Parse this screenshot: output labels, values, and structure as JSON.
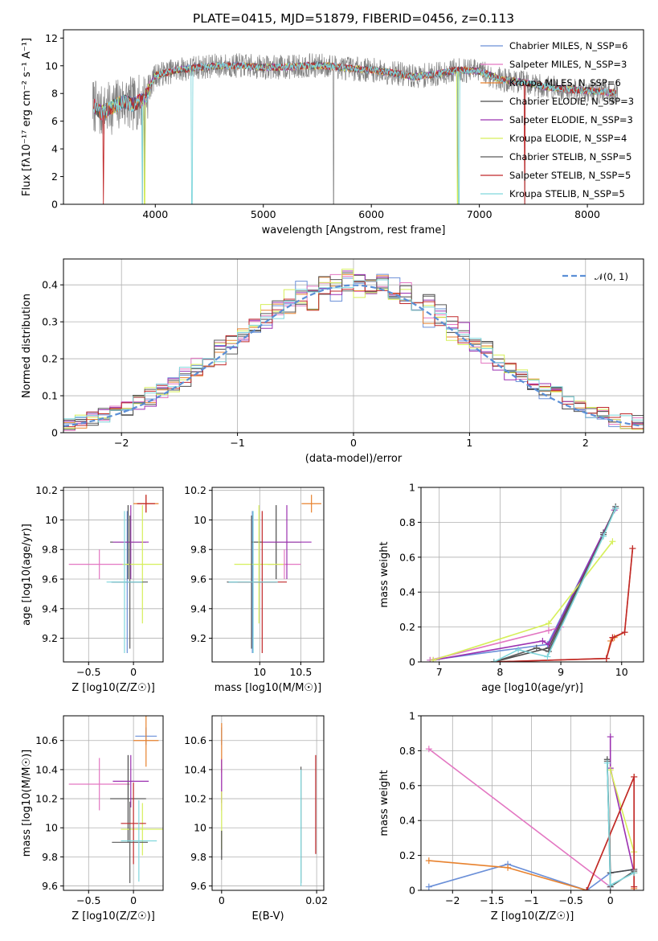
{
  "figure_title": "PLATE=0415, MJD=51879, FIBERID=0456, z=0.113",
  "colors": {
    "Chabrier MILES": "#6a8fd8",
    "Salpeter MILES": "#e377c2",
    "Kroupa MILES": "#e8822e",
    "Chabrier ELODIE": "#4a4a4a",
    "Salpeter ELODIE": "#9b30b0",
    "Kroupa ELODIE": "#d6ef5a",
    "Chabrier STELIB": "#5a5a5a",
    "Salpeter STELIB": "#c0282a",
    "Kroupa STELIB": "#7fd6dc",
    "data": "#808080",
    "normal": "#5b8fd6"
  },
  "chart_data": [
    {
      "id": "spectrum",
      "type": "line",
      "title": "PLATE=0415, MJD=51879, FIBERID=0456, z=0.113",
      "xlabel": "wavelength [Angstrom, rest frame]",
      "ylabel": "Flux [fλ10⁻¹⁷ erg cm⁻² s⁻¹ A⁻¹]",
      "xlim": [
        3150,
        8520
      ],
      "ylim": [
        0,
        12.6
      ],
      "xticks": [
        4000,
        5000,
        6000,
        7000,
        8000
      ],
      "yticks": [
        0,
        2,
        4,
        6,
        8,
        10,
        12
      ],
      "grid": false,
      "legend_position": "right",
      "legend": [
        "Chabrier MILES, N_SSP=6",
        "Salpeter MILES, N_SSP=3",
        "Kroupa MILES, N_SSP=6",
        "Chabrier ELODIE, N_SSP=3",
        "Salpeter ELODIE, N_SSP=3",
        "Kroupa ELODIE, N_SSP=4",
        "Chabrier STELIB, N_SSP=5",
        "Salpeter STELIB, N_SSP=5",
        "Kroupa STELIB, N_SSP=5"
      ],
      "continuum_x": [
        3420,
        3500,
        3600,
        3700,
        3800,
        3900,
        4000,
        4200,
        4400,
        4600,
        4800,
        5000,
        5200,
        5400,
        5600,
        5800,
        6000,
        6200,
        6400,
        6600,
        6800,
        7000,
        7200,
        7400,
        7600,
        7800,
        8000,
        8200,
        8280
      ],
      "continuum_y": [
        7.2,
        6.6,
        7.0,
        7.4,
        7.2,
        7.6,
        9.3,
        9.7,
        9.9,
        10.0,
        10.0,
        9.9,
        9.9,
        10.0,
        10.0,
        9.8,
        9.7,
        9.5,
        9.2,
        9.4,
        9.7,
        9.6,
        9.0,
        8.8,
        8.5,
        8.3,
        8.2,
        8.1,
        8.0
      ]
    },
    {
      "id": "residuals",
      "type": "line",
      "xlabel": "(data-model)/error",
      "ylabel": "Normed distribution",
      "xlim": [
        -2.5,
        2.5
      ],
      "ylim": [
        0,
        0.47
      ],
      "xticks": [
        -2,
        -1,
        0,
        1,
        2
      ],
      "yticks": [
        0.0,
        0.1,
        0.2,
        0.3,
        0.4
      ],
      "grid": true,
      "legend_position": "top-right",
      "legend": [
        "𝒩(0, 1)"
      ],
      "series": [
        {
          "name": "𝒩(0, 1)",
          "mean": 0,
          "sigma": 1
        }
      ]
    },
    {
      "id": "age-vs-z",
      "type": "scatter",
      "xlabel": "Z [log10(Z/Z☉)]",
      "ylabel": "age [log10(age/yr)]",
      "xlim": [
        -0.78,
        0.33
      ],
      "ylim": [
        9.04,
        10.22
      ],
      "xticks": [
        -0.5,
        0.0
      ],
      "yticks": [
        9.2,
        9.4,
        9.6,
        9.8,
        10.0,
        10.2
      ],
      "grid": true,
      "points": [
        {
          "model": "Salpeter MILES",
          "x": -0.38,
          "y": 9.7,
          "xerr": 0.34,
          "yerr": 0.1
        },
        {
          "model": "Chabrier MILES",
          "x": -0.07,
          "y": 9.58,
          "xerr": 0.18,
          "yerr": 0.48
        },
        {
          "model": "Kroupa MILES",
          "x": 0.14,
          "y": 10.11,
          "xerr": 0.14,
          "yerr": 0.06
        },
        {
          "model": "Chabrier ELODIE",
          "x": -0.06,
          "y": 9.85,
          "xerr": 0.2,
          "yerr": 0.25
        },
        {
          "model": "Salpeter ELODIE",
          "x": -0.03,
          "y": 9.85,
          "xerr": 0.2,
          "yerr": 0.25
        },
        {
          "model": "Kroupa ELODIE",
          "x": 0.1,
          "y": 9.7,
          "xerr": 0.22,
          "yerr": 0.4
        },
        {
          "model": "Chabrier STELIB",
          "x": -0.04,
          "y": 9.58,
          "xerr": 0.2,
          "yerr": 0.45
        },
        {
          "model": "Salpeter STELIB",
          "x": 0.14,
          "y": 10.11,
          "xerr": 0.1,
          "yerr": 0.06
        },
        {
          "model": "Kroupa STELIB",
          "x": -0.1,
          "y": 9.58,
          "xerr": 0.2,
          "yerr": 0.48
        }
      ]
    },
    {
      "id": "age-vs-mass",
      "type": "scatter",
      "xlabel": "mass [log10(M/M☉)]",
      "ylabel": "",
      "xlim": [
        9.42,
        10.78
      ],
      "ylim": [
        9.04,
        10.22
      ],
      "xticks": [
        10.0,
        10.5
      ],
      "yticks": [
        9.2,
        9.4,
        9.6,
        9.8,
        10.0,
        10.2
      ],
      "grid": true,
      "points": [
        {
          "model": "Salpeter MILES",
          "x": 10.3,
          "y": 9.7,
          "xerr": 0.2,
          "yerr": 0.1
        },
        {
          "model": "Chabrier MILES",
          "x": 9.91,
          "y": 9.58,
          "xerr": 0.3,
          "yerr": 0.48
        },
        {
          "model": "Kroupa MILES",
          "x": 10.63,
          "y": 10.11,
          "xerr": 0.12,
          "yerr": 0.06
        },
        {
          "model": "Chabrier ELODIE",
          "x": 10.2,
          "y": 9.85,
          "xerr": 0.3,
          "yerr": 0.25
        },
        {
          "model": "Salpeter ELODIE",
          "x": 10.33,
          "y": 9.85,
          "xerr": 0.3,
          "yerr": 0.25
        },
        {
          "model": "Kroupa ELODIE",
          "x": 9.99,
          "y": 9.7,
          "xerr": 0.3,
          "yerr": 0.4
        },
        {
          "model": "Chabrier STELIB",
          "x": 9.9,
          "y": 9.58,
          "xerr": 0.3,
          "yerr": 0.45
        },
        {
          "model": "Salpeter STELIB",
          "x": 10.03,
          "y": 9.58,
          "xerr": 0.3,
          "yerr": 0.48
        },
        {
          "model": "Kroupa STELIB",
          "x": 9.92,
          "y": 9.58,
          "xerr": 0.3,
          "yerr": 0.48
        }
      ]
    },
    {
      "id": "weight-vs-age",
      "type": "line",
      "xlabel": "age [log10(age/yr)]",
      "ylabel": "mass weight",
      "xlim": [
        6.7,
        10.36
      ],
      "ylim": [
        0,
        1.0
      ],
      "xticks": [
        7,
        8,
        9,
        10
      ],
      "yticks": [
        0.0,
        0.2,
        0.4,
        0.6,
        0.8,
        1.0
      ],
      "grid": true,
      "series": [
        {
          "model": "Chabrier MILES",
          "x": [
            6.85,
            8.78,
            9.7,
            9.9
          ],
          "y": [
            0.01,
            0.1,
            0.74,
            0.88
          ]
        },
        {
          "model": "Salpeter MILES",
          "x": [
            6.85,
            8.8,
            9.0
          ],
          "y": [
            0.01,
            0.18,
            0.2
          ]
        },
        {
          "model": "Kroupa MILES",
          "x": [
            7.9,
            9.75,
            9.82,
            9.88,
            10.05,
            10.18
          ],
          "y": [
            0.0,
            0.02,
            0.12,
            0.14,
            0.17,
            0.65
          ]
        },
        {
          "model": "Chabrier ELODIE",
          "x": [
            7.9,
            8.8,
            9.7,
            9.9
          ],
          "y": [
            0.0,
            0.08,
            0.74,
            0.88
          ]
        },
        {
          "model": "Salpeter ELODIE",
          "x": [
            6.9,
            8.7,
            8.8,
            9.88
          ],
          "y": [
            0.01,
            0.12,
            0.1,
            0.87
          ]
        },
        {
          "model": "Kroupa ELODIE",
          "x": [
            6.9,
            8.8,
            9.85
          ],
          "y": [
            0.01,
            0.22,
            0.69
          ]
        },
        {
          "model": "Chabrier STELIB",
          "x": [
            7.9,
            8.6,
            8.8,
            9.7,
            9.9
          ],
          "y": [
            0.0,
            0.08,
            0.06,
            0.73,
            0.89
          ]
        },
        {
          "model": "Salpeter STELIB",
          "x": [
            7.9,
            9.75,
            9.85,
            10.05,
            10.18
          ],
          "y": [
            0.0,
            0.02,
            0.14,
            0.17,
            0.65
          ]
        },
        {
          "model": "Kroupa STELIB",
          "x": [
            7.9,
            8.3,
            8.78,
            9.7,
            9.9
          ],
          "y": [
            0.0,
            0.07,
            0.03,
            0.72,
            0.88
          ]
        }
      ]
    },
    {
      "id": "mass-vs-z",
      "type": "scatter",
      "xlabel": "Z [log10(Z/Z☉)]",
      "ylabel": "mass [log10(M/M☉)]",
      "xlim": [
        -0.78,
        0.33
      ],
      "ylim": [
        9.57,
        10.77
      ],
      "xticks": [
        -0.5,
        0.0
      ],
      "yticks": [
        9.6,
        9.8,
        10.0,
        10.2,
        10.4,
        10.6
      ],
      "grid": true,
      "points": [
        {
          "model": "Salpeter MILES",
          "x": -0.38,
          "y": 10.3,
          "xerr": 0.34,
          "yerr": 0.18
        },
        {
          "model": "Chabrier MILES",
          "x": 0.14,
          "y": 10.63,
          "xerr": 0.12,
          "yerr": 0.06
        },
        {
          "model": "Kroupa MILES",
          "x": 0.14,
          "y": 10.6,
          "xerr": 0.14,
          "yerr": 0.18
        },
        {
          "model": "Chabrier ELODIE",
          "x": -0.06,
          "y": 10.2,
          "xerr": 0.2,
          "yerr": 0.3
        },
        {
          "model": "Salpeter ELODIE",
          "x": -0.03,
          "y": 10.32,
          "xerr": 0.2,
          "yerr": 0.18
        },
        {
          "model": "Kroupa ELODIE",
          "x": 0.1,
          "y": 9.99,
          "xerr": 0.24,
          "yerr": 0.18
        },
        {
          "model": "Chabrier STELIB",
          "x": -0.04,
          "y": 9.9,
          "xerr": 0.2,
          "yerr": 0.28
        },
        {
          "model": "Salpeter STELIB",
          "x": 0.0,
          "y": 10.03,
          "xerr": 0.14,
          "yerr": 0.28
        },
        {
          "model": "Kroupa STELIB",
          "x": 0.06,
          "y": 9.91,
          "xerr": 0.2,
          "yerr": 0.28
        }
      ]
    },
    {
      "id": "mass-vs-ebv",
      "type": "scatter",
      "xlabel": "E(B-V)",
      "ylabel": "",
      "xlim": [
        -0.002,
        0.0215
      ],
      "ylim": [
        9.57,
        10.77
      ],
      "xticks": [
        0.0,
        0.02
      ],
      "yticks": [
        9.6,
        9.8,
        10.0,
        10.2,
        10.4,
        10.6
      ],
      "grid": true,
      "points": [
        {
          "model": "Chabrier MILES",
          "x": 0.0,
          "y": 10.63,
          "yerr": 0.06
        },
        {
          "model": "Salpeter MILES",
          "x": 0.0,
          "y": 10.3,
          "yerr": 0.18
        },
        {
          "model": "Kroupa MILES",
          "x": 0.0,
          "y": 10.55,
          "yerr": 0.17
        },
        {
          "model": "Salpeter ELODIE",
          "x": 0.0,
          "y": 10.32,
          "yerr": 0.15
        },
        {
          "model": "Kroupa ELODIE",
          "x": 0.0,
          "y": 10.05,
          "yerr": 0.2
        },
        {
          "model": "Chabrier ELODIE",
          "x": 0.0,
          "y": 9.88,
          "yerr": 0.1
        },
        {
          "model": "Chabrier STELIB",
          "x": 0.0167,
          "y": 10.02,
          "yerr": 0.4
        },
        {
          "model": "Kroupa STELIB",
          "x": 0.0167,
          "y": 10.0,
          "yerr": 0.4
        },
        {
          "model": "Salpeter STELIB",
          "x": 0.0198,
          "y": 10.16,
          "yerr": 0.34
        }
      ]
    },
    {
      "id": "weight-vs-z",
      "type": "line",
      "xlabel": "Z [log10(Z/Z☉)]",
      "ylabel": "mass weight",
      "xlim": [
        -2.4,
        0.42
      ],
      "ylim": [
        0,
        1.0
      ],
      "xticks": [
        -2.0,
        -1.5,
        -1.0,
        -0.5,
        0.0
      ],
      "yticks": [
        0.0,
        0.2,
        0.4,
        0.6,
        0.8,
        1.0
      ],
      "grid": true,
      "series": [
        {
          "model": "Chabrier MILES",
          "x": [
            -2.3,
            -1.3,
            -0.3,
            0.0,
            0.3
          ],
          "y": [
            0.02,
            0.15,
            0.0,
            0.1,
            0.12
          ]
        },
        {
          "model": "Salpeter MILES",
          "x": [
            -2.3,
            0.0
          ],
          "y": [
            0.81,
            0.02
          ]
        },
        {
          "model": "Kroupa MILES",
          "x": [
            -2.3,
            -1.3,
            -0.3,
            0.3,
            0.3
          ],
          "y": [
            0.17,
            0.13,
            0.0,
            0.65,
            0.01
          ]
        },
        {
          "model": "Chabrier ELODIE",
          "x": [
            -0.04,
            0.0,
            0.3
          ],
          "y": [
            0.75,
            0.1,
            0.12
          ]
        },
        {
          "model": "Salpeter ELODIE",
          "x": [
            0.0,
            0.0,
            0.3
          ],
          "y": [
            0.88,
            0.7,
            0.1
          ]
        },
        {
          "model": "Kroupa ELODIE",
          "x": [
            0.0,
            0.3,
            0.3
          ],
          "y": [
            0.69,
            0.22,
            0.1
          ]
        },
        {
          "model": "Chabrier STELIB",
          "x": [
            -0.04,
            0.0,
            0.3
          ],
          "y": [
            0.74,
            0.02,
            0.11
          ]
        },
        {
          "model": "Salpeter STELIB",
          "x": [
            -0.3,
            0.3,
            0.3
          ],
          "y": [
            0.0,
            0.65,
            0.02
          ]
        },
        {
          "model": "Kroupa STELIB",
          "x": [
            -0.04,
            0.0,
            0.3
          ],
          "y": [
            0.73,
            0.03,
            0.1
          ]
        }
      ]
    }
  ]
}
